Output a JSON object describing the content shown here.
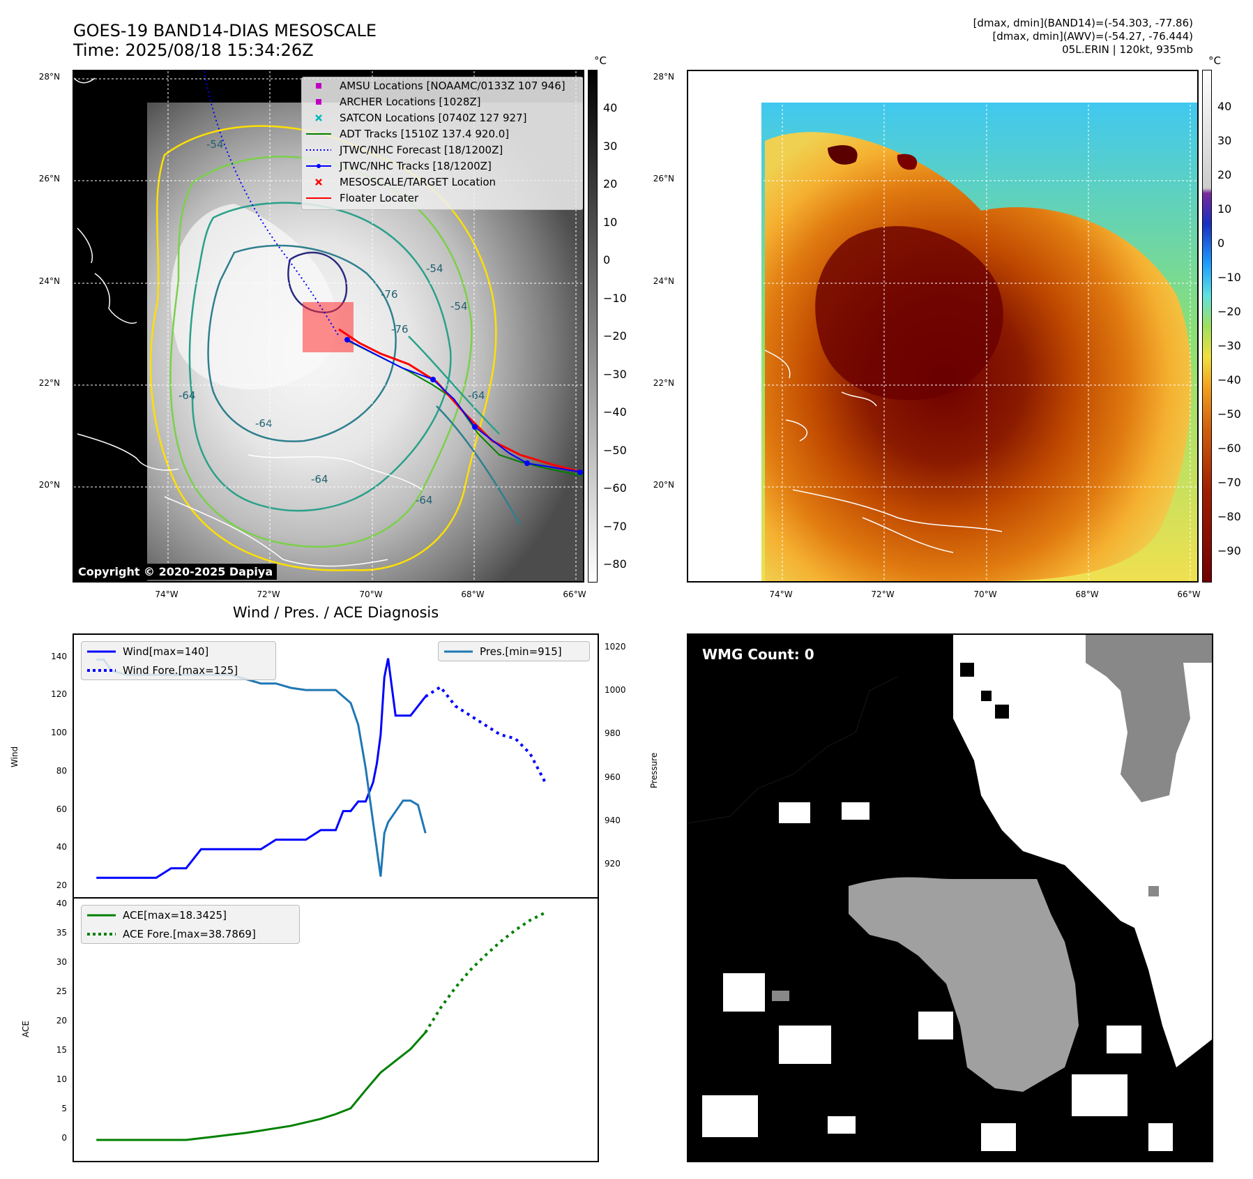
{
  "header": {
    "title_line1": "GOES-19 BAND14-DIAS MESOSCALE",
    "title_line2": "Time: 2025/08/18 15:34:26Z",
    "info_line1": "[dmax, dmin](BAND14)=(-54.303, -77.86)",
    "info_line2": "[dmax, dmin](AWV)=(-54.27, -76.444)",
    "info_line3": "05L.ERIN | 120kt, 935mb"
  },
  "map_axes": {
    "lat_labels": [
      "28°N",
      "26°N",
      "24°N",
      "22°N",
      "20°N"
    ],
    "lon_labels": [
      "74°W",
      "72°W",
      "70°W",
      "68°W",
      "66°W"
    ]
  },
  "left_map": {
    "colorbar_unit": "°C",
    "colorbar_ticks": [
      "40",
      "30",
      "20",
      "10",
      "0",
      "−10",
      "−20",
      "−30",
      "−40",
      "−50",
      "−60",
      "−70",
      "−80"
    ],
    "copyright": "Copyright © 2020-2025 Dapiya",
    "contour_labels": [
      "-54",
      "-54",
      "-64",
      "-64",
      "-76",
      "-76",
      "-64",
      "-64",
      "-64",
      "-54"
    ],
    "legend": [
      {
        "label": "AMSU Locations [NOAAMC/0133Z 107 946]",
        "icon": "square-marker",
        "color": "#c000c0"
      },
      {
        "label": "ARCHER Locations [1028Z]",
        "icon": "square-marker",
        "color": "#c000c0"
      },
      {
        "label": "SATCON Locations [0740Z 127 927]",
        "icon": "x-marker",
        "color": "#00b8b8"
      },
      {
        "label": "ADT Tracks [1510Z 137.4 920.0]",
        "icon": "solid-line",
        "color": "#008000"
      },
      {
        "label": "JTWC/NHC Forecast [18/1200Z]",
        "icon": "dotted-line",
        "color": "#0000ff"
      },
      {
        "label": "JTWC/NHC Tracks [18/1200Z]",
        "icon": "line-dot",
        "color": "#0000ff"
      },
      {
        "label": "MESOSCALE/TARGET Location",
        "icon": "x-marker",
        "color": "#ff0000"
      },
      {
        "label": "Floater Locater",
        "icon": "solid-line",
        "color": "#ff0000"
      }
    ]
  },
  "right_map": {
    "colorbar_unit": "°C",
    "colorbar_ticks": [
      "40",
      "30",
      "20",
      "10",
      "0",
      "−10",
      "−20",
      "−30",
      "−40",
      "−50",
      "−60",
      "−70",
      "−80",
      "−90"
    ]
  },
  "diagnosis": {
    "title": "Wind / Pres. / ACE Diagnosis",
    "wind_ylabel": "Wind",
    "pres_ylabel": "Pressure",
    "ace_ylabel": "ACE",
    "wind_ticks": [
      "140",
      "120",
      "100",
      "80",
      "60",
      "40",
      "20"
    ],
    "pres_ticks": [
      "1020",
      "1000",
      "980",
      "960",
      "940",
      "920"
    ],
    "ace_ticks": [
      "40",
      "35",
      "30",
      "25",
      "20",
      "15",
      "10",
      "5",
      "0"
    ],
    "legend_wind": "Wind[max=140]",
    "legend_wind_fore": "Wind Fore.[max=125]",
    "legend_pres": "Pres.[min=915]",
    "legend_ace": "ACE[max=18.3425]",
    "legend_ace_fore": "ACE Fore.[max=38.7869]"
  },
  "wmg": {
    "label": "WMG Count: 0"
  },
  "chart_data": [
    {
      "type": "line",
      "title": "Wind / Pres. / ACE Diagnosis",
      "xlabel": "",
      "ylabel": "Wind",
      "ylim": [
        20,
        145
      ],
      "series": [
        {
          "name": "Wind[max=140]",
          "color": "#0000ff",
          "style": "solid",
          "x": [
            0,
            4,
            6,
            8,
            10,
            12,
            14,
            16,
            18,
            20,
            22,
            24,
            26,
            28,
            30,
            32,
            33,
            34,
            35,
            36,
            37,
            37.5,
            38,
            38.5,
            39,
            40,
            42,
            44
          ],
          "y": [
            25,
            25,
            25,
            25,
            30,
            30,
            40,
            40,
            40,
            40,
            40,
            45,
            45,
            45,
            50,
            50,
            60,
            60,
            65,
            65,
            75,
            85,
            100,
            130,
            140,
            110,
            110,
            120
          ]
        },
        {
          "name": "Wind Fore.[max=125]",
          "color": "#0000ff",
          "style": "dotted",
          "x": [
            44,
            46,
            48,
            50,
            52,
            54,
            56,
            58,
            60
          ],
          "y": [
            120,
            125,
            115,
            110,
            105,
            100,
            98,
            90,
            75
          ]
        }
      ]
    },
    {
      "type": "line",
      "ylabel": "Pressure",
      "ylim": [
        910,
        1020
      ],
      "series": [
        {
          "name": "Pres.[min=915]",
          "color": "#1f77b4",
          "style": "solid",
          "x": [
            0,
            1,
            2,
            4,
            6,
            8,
            10,
            12,
            14,
            16,
            18,
            20,
            22,
            24,
            26,
            28,
            30,
            32,
            34,
            35,
            36,
            37,
            38,
            38.5,
            39,
            40,
            41,
            42,
            43,
            44
          ],
          "y": [
            1015,
            1015,
            1010,
            1008,
            1008,
            1008,
            1008,
            1008,
            1008,
            1008,
            1008,
            1006,
            1004,
            1004,
            1002,
            1001,
            1001,
            1001,
            995,
            985,
            965,
            940,
            915,
            935,
            940,
            945,
            950,
            950,
            948,
            935
          ]
        }
      ]
    },
    {
      "type": "line",
      "ylabel": "ACE",
      "ylim": [
        0,
        40
      ],
      "series": [
        {
          "name": "ACE[max=18.3425]",
          "color": "#008000",
          "style": "solid",
          "x": [
            0,
            4,
            8,
            10,
            12,
            14,
            16,
            18,
            20,
            22,
            24,
            26,
            28,
            30,
            32,
            34,
            36,
            37,
            38,
            39,
            40,
            42,
            44
          ],
          "y": [
            0,
            0,
            0,
            0,
            0,
            0.3,
            0.6,
            0.9,
            1.2,
            1.6,
            2.0,
            2.4,
            3.0,
            3.6,
            4.4,
            5.4,
            8.5,
            10.0,
            11.5,
            12.5,
            13.5,
            15.5,
            18.3425
          ]
        },
        {
          "name": "ACE Fore.[max=38.7869]",
          "color": "#008000",
          "style": "dotted",
          "x": [
            44,
            46,
            48,
            50,
            52,
            54,
            56,
            58,
            60
          ],
          "y": [
            18.3425,
            22.5,
            26.0,
            29.0,
            31.5,
            33.8,
            35.8,
            37.5,
            38.7869
          ]
        }
      ]
    }
  ]
}
